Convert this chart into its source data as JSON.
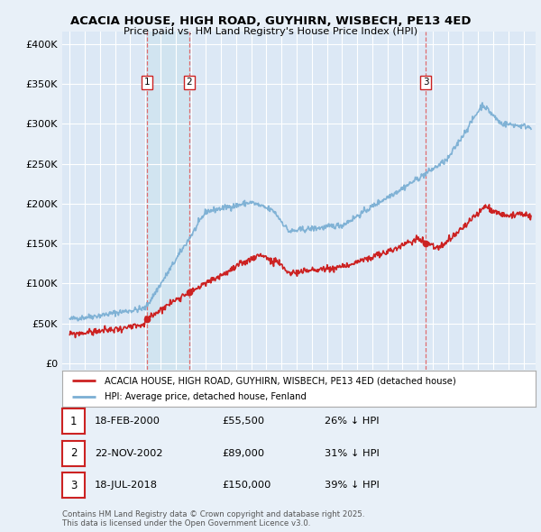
{
  "title": "ACACIA HOUSE, HIGH ROAD, GUYHIRN, WISBECH, PE13 4ED",
  "subtitle": "Price paid vs. HM Land Registry's House Price Index (HPI)",
  "bg_color": "#e8f0f8",
  "plot_bg_color": "#dce8f5",
  "transactions": [
    {
      "num": 1,
      "date": "18-FEB-2000",
      "date_x": 2000.12,
      "price": 55500,
      "pct": "26% ↓ HPI"
    },
    {
      "num": 2,
      "date": "22-NOV-2002",
      "date_x": 2002.9,
      "price": 89000,
      "pct": "31% ↓ HPI"
    },
    {
      "num": 3,
      "date": "18-JUL-2018",
      "date_x": 2018.54,
      "price": 150000,
      "pct": "39% ↓ HPI"
    }
  ],
  "ylabel_ticks": [
    0,
    50000,
    100000,
    150000,
    200000,
    250000,
    300000,
    350000,
    400000
  ],
  "ylabel_labels": [
    "£0",
    "£50K",
    "£100K",
    "£150K",
    "£200K",
    "£250K",
    "£300K",
    "£350K",
    "£400K"
  ],
  "xmin": 1994.5,
  "xmax": 2025.8,
  "ymin": -8000,
  "ymax": 415000,
  "legend_line1": "ACACIA HOUSE, HIGH ROAD, GUYHIRN, WISBECH, PE13 4ED (detached house)",
  "legend_line2": "HPI: Average price, detached house, Fenland",
  "footer": "Contains HM Land Registry data © Crown copyright and database right 2025.\nThis data is licensed under the Open Government Licence v3.0.",
  "hpi_color": "#7bafd4",
  "price_color": "#cc2222",
  "dashed_color": "#e06060",
  "span_color": "#d0e4f0"
}
